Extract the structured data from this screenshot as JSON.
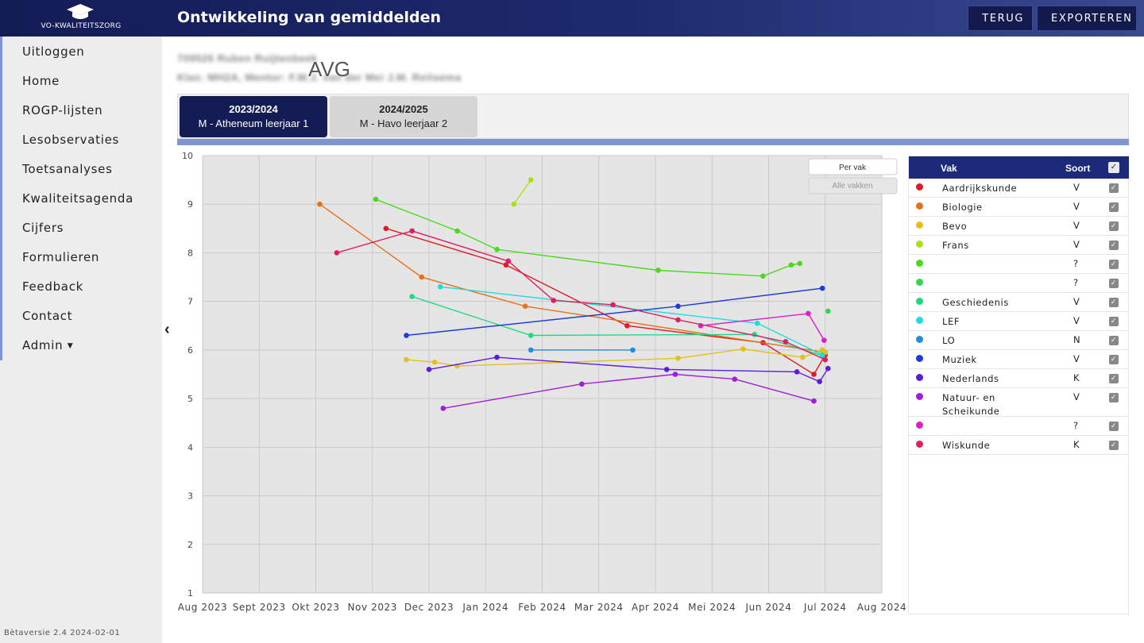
{
  "header": {
    "logo_text": "VO-KWALITEITSZORG",
    "title": "Ontwikkeling van gemiddelden",
    "back_label": "TERUG",
    "export_label": "EXPORTEREN"
  },
  "sidebar": {
    "items": [
      {
        "label": "Uitloggen"
      },
      {
        "label": "Home"
      },
      {
        "label": "ROGP-lijsten"
      },
      {
        "label": "Lesobservaties"
      },
      {
        "label": "Toetsanalyses"
      },
      {
        "label": "Kwaliteitsagenda"
      },
      {
        "label": "Cijfers"
      },
      {
        "label": "Formulieren"
      },
      {
        "label": "Feedback"
      },
      {
        "label": "Contact"
      },
      {
        "label": "Admin"
      }
    ],
    "version": "Bètaversie 2.4 2024-02-01"
  },
  "student": {
    "name_line": "709526 Ruben Ruijtenbeek",
    "class_line": "Klas: MH2A, Mentor: F.M.J. van der Mei J.M. Reitsema",
    "privacy_label": "AVG"
  },
  "tabs": [
    {
      "year": "2023/2024",
      "desc": "M - Atheneum leerjaar 1",
      "active": true
    },
    {
      "year": "2024/2025",
      "desc": "M - Havo leerjaar 2",
      "active": false
    }
  ],
  "toggle": {
    "per_vak": "Per vak",
    "alle_vakken": "Alle vakken"
  },
  "legend": {
    "col_vak": "Vak",
    "col_soort": "Soort",
    "rows": [
      {
        "vak": "Aardrijkskunde",
        "soort": "V",
        "color": "#e01b24"
      },
      {
        "vak": "Biologie",
        "soort": "V",
        "color": "#e8701a"
      },
      {
        "vak": "Bevo",
        "soort": "V",
        "color": "#e5c01a"
      },
      {
        "vak": "Frans",
        "soort": "V",
        "color": "#a8e01a"
      },
      {
        "vak": "",
        "soort": "?",
        "color": "#4cd81e"
      },
      {
        "vak": "",
        "soort": "?",
        "color": "#2ed84a"
      },
      {
        "vak": "Geschiedenis",
        "soort": "V",
        "color": "#20d884"
      },
      {
        "vak": "LEF",
        "soort": "V",
        "color": "#1edcdc"
      },
      {
        "vak": "LO",
        "soort": "N",
        "color": "#1e8ee0"
      },
      {
        "vak": "Muziek",
        "soort": "V",
        "color": "#1e3cd8"
      },
      {
        "vak": "Nederlands",
        "soort": "K",
        "color": "#5a1ed8"
      },
      {
        "vak": "Natuur- en Scheikunde",
        "soort": "V",
        "color": "#a01ed8"
      },
      {
        "vak": "",
        "soort": "?",
        "color": "#e01ec8"
      },
      {
        "vak": "Wiskunde",
        "soort": "K",
        "color": "#e01e64"
      }
    ]
  },
  "chart_data": {
    "type": "line",
    "x_axis": {
      "ticks": [
        "Aug 2023",
        "Sept 2023",
        "Okt 2023",
        "Nov 2023",
        "Dec 2023",
        "Jan 2024",
        "Feb 2024",
        "Mar 2024",
        "Apr 2024",
        "Mei 2024",
        "Jun 2024",
        "Jul 2024",
        "Aug 2024"
      ]
    },
    "y_axis": {
      "min": 1,
      "max": 10,
      "ticks": [
        1,
        2,
        3,
        4,
        5,
        6,
        7,
        8,
        9,
        10
      ]
    },
    "grid": true,
    "x_unit": "months since Aug 2023",
    "series": [
      {
        "name": "Aardrijkskunde",
        "color": "#e01b24",
        "points": [
          [
            3.24,
            8.5
          ],
          [
            5.36,
            7.75
          ],
          [
            7.5,
            6.5
          ],
          [
            9.9,
            6.15
          ],
          [
            10.8,
            5.5
          ],
          [
            11.0,
            5.9
          ]
        ]
      },
      {
        "name": "Biologie",
        "color": "#e8701a",
        "points": [
          [
            2.07,
            9.0
          ],
          [
            3.87,
            7.5
          ],
          [
            5.7,
            6.9
          ],
          [
            11.0,
            5.95
          ]
        ]
      },
      {
        "name": "Bevo",
        "color": "#e5c01a",
        "points": [
          [
            3.6,
            5.8
          ],
          [
            4.1,
            5.75
          ],
          [
            4.5,
            5.67
          ],
          [
            8.4,
            5.83
          ],
          [
            9.55,
            6.02
          ],
          [
            10.6,
            5.85
          ],
          [
            10.95,
            6.0
          ],
          [
            11.0,
            5.95
          ]
        ]
      },
      {
        "name": "Frans",
        "color": "#a8e01a",
        "points": [
          [
            5.5,
            9.0
          ],
          [
            5.8,
            9.5
          ]
        ]
      },
      {
        "name": "",
        "color": "#4cd81e",
        "points": [
          [
            3.06,
            9.1
          ],
          [
            4.5,
            8.45
          ],
          [
            5.2,
            8.07
          ],
          [
            8.05,
            7.64
          ],
          [
            9.9,
            7.52
          ],
          [
            10.4,
            7.75
          ],
          [
            10.55,
            7.78
          ]
        ]
      },
      {
        "name": "",
        "color": "#2ed84a",
        "points": [
          [
            11.05,
            6.8
          ]
        ]
      },
      {
        "name": "Geschiedenis",
        "color": "#20d884",
        "points": [
          [
            3.7,
            7.1
          ],
          [
            5.8,
            6.3
          ],
          [
            9.75,
            6.32
          ],
          [
            10.95,
            5.88
          ]
        ]
      },
      {
        "name": "LEF",
        "color": "#1edcdc",
        "points": [
          [
            4.2,
            7.3
          ],
          [
            9.8,
            6.55
          ],
          [
            10.95,
            5.9
          ]
        ]
      },
      {
        "name": "LO",
        "color": "#1e8ee0",
        "points": [
          [
            5.8,
            6.0
          ],
          [
            7.6,
            6.0
          ]
        ]
      },
      {
        "name": "Muziek",
        "color": "#1e3cd8",
        "points": [
          [
            3.6,
            6.3
          ],
          [
            8.4,
            6.9
          ],
          [
            10.95,
            7.27
          ]
        ]
      },
      {
        "name": "Nederlands",
        "color": "#5a1ed8",
        "points": [
          [
            4.0,
            5.6
          ],
          [
            5.2,
            5.85
          ],
          [
            8.2,
            5.6
          ],
          [
            10.5,
            5.55
          ],
          [
            10.9,
            5.35
          ],
          [
            11.05,
            5.62
          ]
        ]
      },
      {
        "name": "Natuur- en Scheikunde",
        "color": "#a01ed8",
        "points": [
          [
            4.25,
            4.8
          ],
          [
            6.7,
            5.3
          ],
          [
            8.35,
            5.5
          ],
          [
            9.4,
            5.4
          ],
          [
            10.8,
            4.95
          ]
        ]
      },
      {
        "name": "",
        "color": "#e01ec8",
        "points": [
          [
            8.8,
            6.5
          ],
          [
            10.7,
            6.75
          ],
          [
            10.98,
            6.2
          ]
        ]
      },
      {
        "name": "Wiskunde",
        "color": "#e01e64",
        "points": [
          [
            2.37,
            8.0
          ],
          [
            3.7,
            8.45
          ],
          [
            5.4,
            7.83
          ],
          [
            6.2,
            7.02
          ],
          [
            7.25,
            6.93
          ],
          [
            8.4,
            6.62
          ],
          [
            10.3,
            6.17
          ],
          [
            11.0,
            5.8
          ]
        ]
      }
    ]
  }
}
